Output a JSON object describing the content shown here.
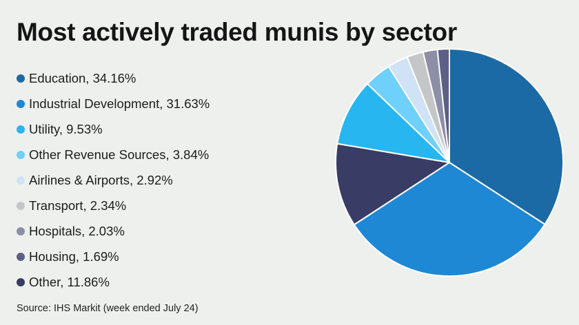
{
  "title": "Most actively traded munis by sector",
  "source": "Source: IHS Markit (week ended July 24)",
  "chart_data": {
    "type": "pie",
    "title": "Most actively traded munis by sector",
    "legend_position": "left",
    "slices": [
      {
        "label": "Education, 34.16%",
        "name": "Education",
        "value": 34.16,
        "color": "#1b6aa5"
      },
      {
        "label": "Industrial Development, 31.63%",
        "name": "Industrial Development",
        "value": 31.63,
        "color": "#1f88d4"
      },
      {
        "label": "Utility, 9.53%",
        "name": "Utility",
        "value": 9.53,
        "color": "#27b6f0"
      },
      {
        "label": "Other Revenue Sources, 3.84%",
        "name": "Other Revenue Sources",
        "value": 3.84,
        "color": "#6fd0fb"
      },
      {
        "label": "Airlines & Airports, 2.92%",
        "name": "Airlines & Airports",
        "value": 2.92,
        "color": "#cfe2f6"
      },
      {
        "label": "Transport, 2.34%",
        "name": "Transport",
        "value": 2.34,
        "color": "#c4c6c8"
      },
      {
        "label": "Hospitals, 2.03%",
        "name": "Hospitals",
        "value": 2.03,
        "color": "#8d8fa7"
      },
      {
        "label": "Housing, 1.69%",
        "name": "Housing",
        "value": 1.69,
        "color": "#5c6087"
      },
      {
        "label": "Other, 11.86%",
        "name": "Other",
        "value": 11.86,
        "color": "#393c64"
      }
    ],
    "pie_order": [
      "Education",
      "Industrial Development",
      "Other",
      "Utility",
      "Other Revenue Sources",
      "Airlines & Airports",
      "Transport",
      "Hospitals",
      "Housing"
    ]
  }
}
